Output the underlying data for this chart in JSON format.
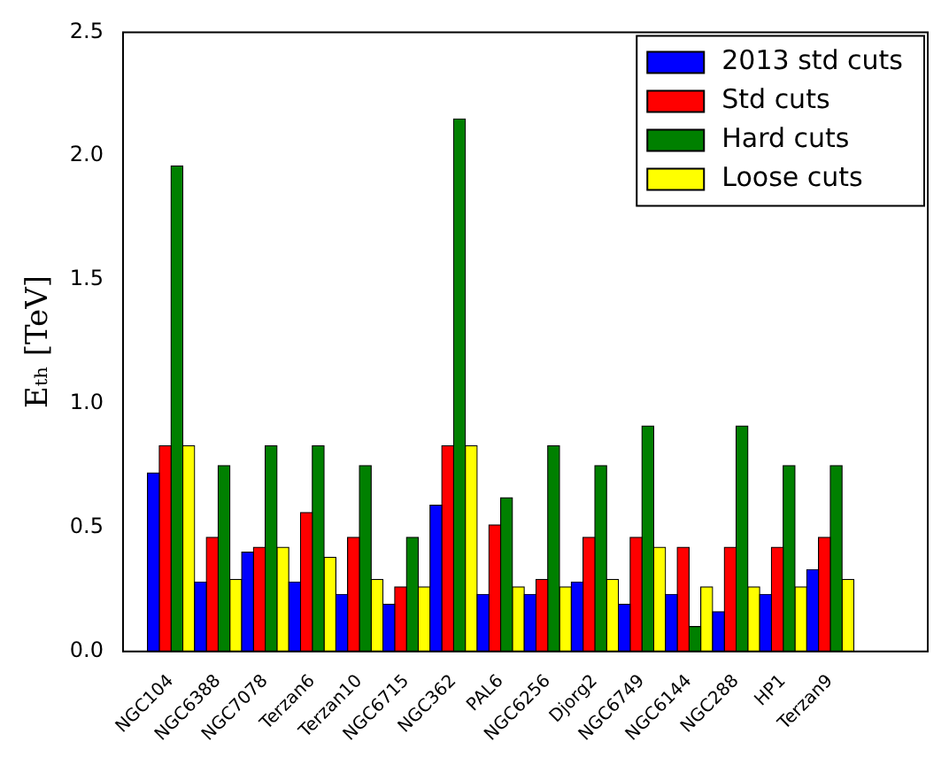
{
  "chart_data": {
    "type": "bar",
    "ylabel": "Eₜₕ [TeV]",
    "categories": [
      "NGC104",
      "NGC6388",
      "NGC7078",
      "Terzan6",
      "Terzan10",
      "NGC6715",
      "NGC362",
      "PAL6",
      "NGC6256",
      "Djorg2",
      "NGC6749",
      "NGC6144",
      "NGC288",
      "HP1",
      "Terzan9"
    ],
    "series": [
      {
        "name": "2013 std cuts",
        "color": "#0000ff",
        "values": [
          0.72,
          0.28,
          0.4,
          0.28,
          0.23,
          0.19,
          0.59,
          0.23,
          0.23,
          0.28,
          0.19,
          0.23,
          0.16,
          0.23,
          0.33
        ]
      },
      {
        "name": "Std cuts",
        "color": "#ff0000",
        "values": [
          0.83,
          0.46,
          0.42,
          0.56,
          0.46,
          0.26,
          0.83,
          0.51,
          0.29,
          0.46,
          0.46,
          0.42,
          0.42,
          0.42,
          0.46
        ]
      },
      {
        "name": "Hard cuts",
        "color": "#008000",
        "values": [
          1.96,
          0.75,
          0.83,
          0.83,
          0.75,
          0.46,
          2.15,
          0.62,
          0.83,
          0.75,
          0.91,
          0.1,
          0.91,
          0.75,
          0.75
        ]
      },
      {
        "name": "Loose cuts",
        "color": "#ffff00",
        "values": [
          0.83,
          0.29,
          0.42,
          0.38,
          0.29,
          0.26,
          0.83,
          0.26,
          0.26,
          0.29,
          0.42,
          0.26,
          0.26,
          0.26,
          0.29
        ]
      }
    ],
    "ylim": [
      0,
      2.5
    ],
    "yticks": [
      {
        "value": 0,
        "label": "0.0"
      },
      0.5,
      {
        "value": 1,
        "label": "1.0"
      },
      1.5,
      {
        "value": 2,
        "label": "2.0"
      },
      2.5
    ],
    "grid": false,
    "legend": "top right"
  }
}
